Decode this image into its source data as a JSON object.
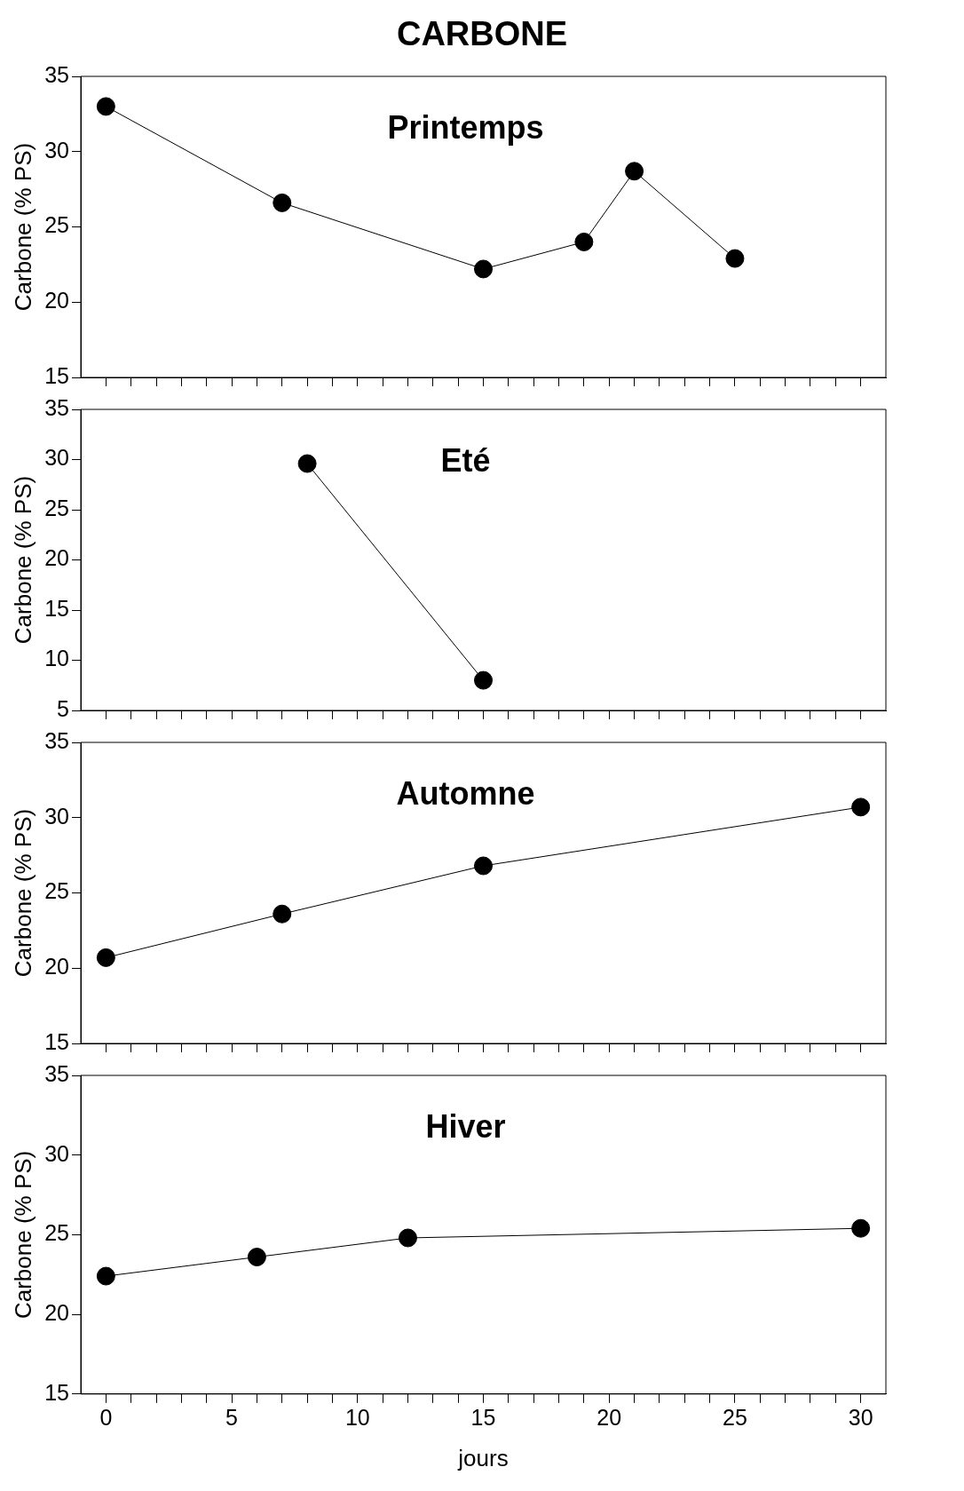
{
  "chart_data": [
    {
      "type": "line",
      "title": "CARBONE",
      "ylabel": "Carbone (% PS)",
      "annotations": [
        "Printemps"
      ],
      "x": [
        0,
        7,
        15,
        19,
        21,
        25
      ],
      "values": [
        33.0,
        26.6,
        22.2,
        24.0,
        28.7,
        22.9
      ],
      "color": "#000000",
      "marker": "circle",
      "line_style": "solid",
      "grid": false,
      "legend": false,
      "tick_labels": "y",
      "xlim": [
        -1,
        31
      ],
      "xticks": [
        0,
        {
          "value": 1,
          "label": null
        },
        {
          "value": 2,
          "label": null
        },
        {
          "value": 3,
          "label": null
        },
        {
          "value": 4,
          "label": null
        },
        5,
        {
          "value": 6,
          "label": null
        },
        {
          "value": 7,
          "label": null
        },
        {
          "value": 8,
          "label": null
        },
        {
          "value": 9,
          "label": null
        },
        10,
        {
          "value": 11,
          "label": null
        },
        {
          "value": 12,
          "label": null
        },
        {
          "value": 13,
          "label": null
        },
        {
          "value": 14,
          "label": null
        },
        15,
        {
          "value": 16,
          "label": null
        },
        {
          "value": 17,
          "label": null
        },
        {
          "value": 18,
          "label": null
        },
        {
          "value": 19,
          "label": null
        },
        20,
        {
          "value": 21,
          "label": null
        },
        {
          "value": 22,
          "label": null
        },
        {
          "value": 23,
          "label": null
        },
        {
          "value": 24,
          "label": null
        },
        25,
        {
          "value": 26,
          "label": null
        },
        {
          "value": 27,
          "label": null
        },
        {
          "value": 28,
          "label": null
        },
        {
          "value": 29,
          "label": null
        },
        30
      ],
      "ylim": [
        15,
        35
      ],
      "yticks": [
        15,
        20,
        25,
        30,
        35
      ]
    },
    {
      "type": "line",
      "ylabel": "Carbone (% PS)",
      "annotations": [
        "Eté"
      ],
      "x": [
        8,
        15
      ],
      "values": [
        29.6,
        8.0
      ],
      "color": "#000000",
      "marker": "circle",
      "line_style": "solid",
      "grid": false,
      "legend": false,
      "tick_labels": "y",
      "xlim": [
        -1,
        31
      ],
      "xticks": [
        0,
        {
          "value": 1,
          "label": null
        },
        {
          "value": 2,
          "label": null
        },
        {
          "value": 3,
          "label": null
        },
        {
          "value": 4,
          "label": null
        },
        5,
        {
          "value": 6,
          "label": null
        },
        {
          "value": 7,
          "label": null
        },
        {
          "value": 8,
          "label": null
        },
        {
          "value": 9,
          "label": null
        },
        10,
        {
          "value": 11,
          "label": null
        },
        {
          "value": 12,
          "label": null
        },
        {
          "value": 13,
          "label": null
        },
        {
          "value": 14,
          "label": null
        },
        15,
        {
          "value": 16,
          "label": null
        },
        {
          "value": 17,
          "label": null
        },
        {
          "value": 18,
          "label": null
        },
        {
          "value": 19,
          "label": null
        },
        20,
        {
          "value": 21,
          "label": null
        },
        {
          "value": 22,
          "label": null
        },
        {
          "value": 23,
          "label": null
        },
        {
          "value": 24,
          "label": null
        },
        25,
        {
          "value": 26,
          "label": null
        },
        {
          "value": 27,
          "label": null
        },
        {
          "value": 28,
          "label": null
        },
        {
          "value": 29,
          "label": null
        },
        30
      ],
      "ylim": [
        5,
        35
      ],
      "yticks": [
        5,
        10,
        15,
        20,
        25,
        30,
        35
      ]
    },
    {
      "type": "line",
      "ylabel": "Carbone (% PS)",
      "annotations": [
        "Automne"
      ],
      "x": [
        0,
        7,
        15,
        30
      ],
      "values": [
        20.7,
        23.6,
        26.8,
        30.7
      ],
      "color": "#000000",
      "marker": "circle",
      "line_style": "solid",
      "grid": false,
      "legend": false,
      "tick_labels": "y",
      "xlim": [
        -1,
        31
      ],
      "xticks": [
        0,
        {
          "value": 1,
          "label": null
        },
        {
          "value": 2,
          "label": null
        },
        {
          "value": 3,
          "label": null
        },
        {
          "value": 4,
          "label": null
        },
        5,
        {
          "value": 6,
          "label": null
        },
        {
          "value": 7,
          "label": null
        },
        {
          "value": 8,
          "label": null
        },
        {
          "value": 9,
          "label": null
        },
        10,
        {
          "value": 11,
          "label": null
        },
        {
          "value": 12,
          "label": null
        },
        {
          "value": 13,
          "label": null
        },
        {
          "value": 14,
          "label": null
        },
        15,
        {
          "value": 16,
          "label": null
        },
        {
          "value": 17,
          "label": null
        },
        {
          "value": 18,
          "label": null
        },
        {
          "value": 19,
          "label": null
        },
        20,
        {
          "value": 21,
          "label": null
        },
        {
          "value": 22,
          "label": null
        },
        {
          "value": 23,
          "label": null
        },
        {
          "value": 24,
          "label": null
        },
        25,
        {
          "value": 26,
          "label": null
        },
        {
          "value": 27,
          "label": null
        },
        {
          "value": 28,
          "label": null
        },
        {
          "value": 29,
          "label": null
        },
        30
      ],
      "ylim": [
        15,
        35
      ],
      "yticks": [
        15,
        20,
        25,
        30,
        35
      ]
    },
    {
      "type": "line",
      "ylabel": "Carbone (% PS)",
      "xlabel": "jours",
      "annotations": [
        "Hiver"
      ],
      "x": [
        0,
        6,
        12,
        30
      ],
      "values": [
        22.4,
        23.6,
        24.8,
        25.4
      ],
      "color": "#000000",
      "marker": "circle",
      "line_style": "solid",
      "grid": false,
      "legend": false,
      "xlim": [
        -1,
        31
      ],
      "xticks": [
        0,
        {
          "value": 1,
          "label": null
        },
        {
          "value": 2,
          "label": null
        },
        {
          "value": 3,
          "label": null
        },
        {
          "value": 4,
          "label": null
        },
        5,
        {
          "value": 6,
          "label": null
        },
        {
          "value": 7,
          "label": null
        },
        {
          "value": 8,
          "label": null
        },
        {
          "value": 9,
          "label": null
        },
        10,
        {
          "value": 11,
          "label": null
        },
        {
          "value": 12,
          "label": null
        },
        {
          "value": 13,
          "label": null
        },
        {
          "value": 14,
          "label": null
        },
        15,
        {
          "value": 16,
          "label": null
        },
        {
          "value": 17,
          "label": null
        },
        {
          "value": 18,
          "label": null
        },
        {
          "value": 19,
          "label": null
        },
        20,
        {
          "value": 21,
          "label": null
        },
        {
          "value": 22,
          "label": null
        },
        {
          "value": 23,
          "label": null
        },
        {
          "value": 24,
          "label": null
        },
        25,
        {
          "value": 26,
          "label": null
        },
        {
          "value": 27,
          "label": null
        },
        {
          "value": 28,
          "label": null
        },
        {
          "value": 29,
          "label": null
        },
        30
      ],
      "ylim": [
        15,
        35
      ],
      "yticks": [
        15,
        20,
        25,
        30,
        35
      ]
    }
  ]
}
